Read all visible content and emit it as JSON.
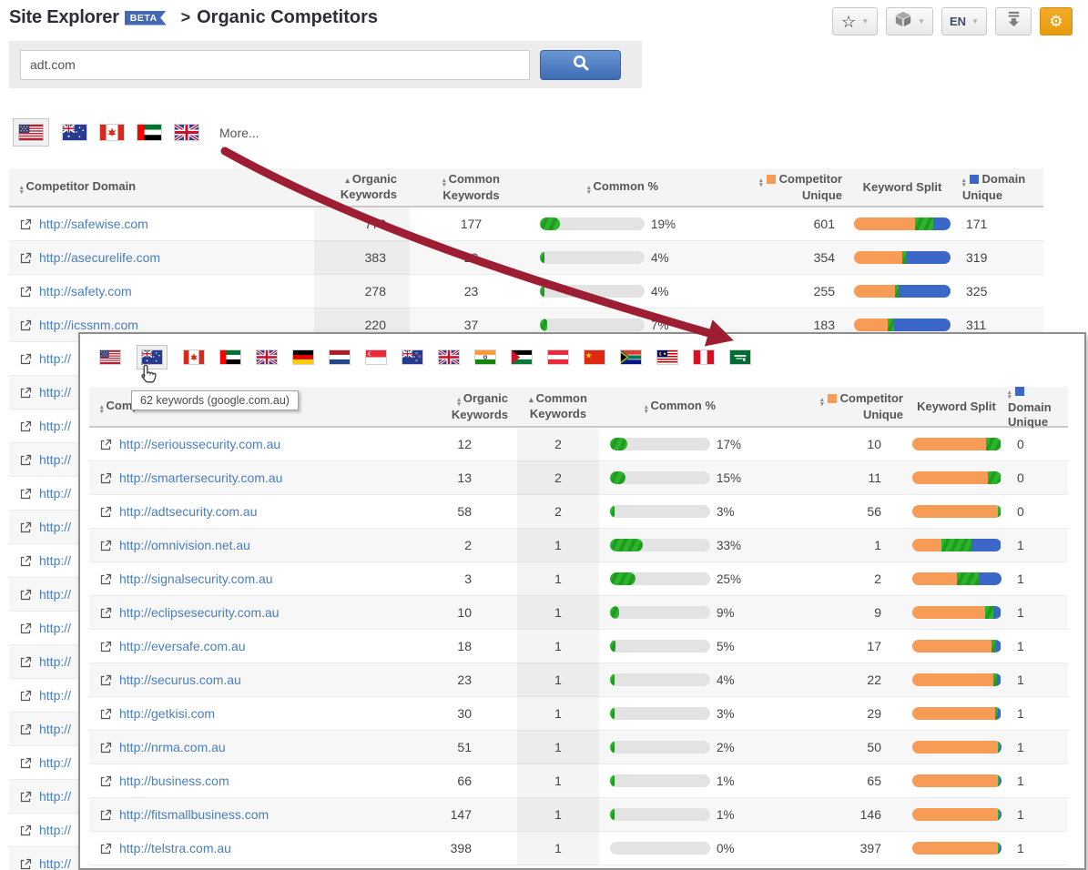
{
  "colors": {
    "accent_orange": "#f79c57",
    "accent_green": "#2cb52c",
    "accent_blue": "#3a67c8",
    "link_blue": "#4a7ebd",
    "arrow_red": "#9d1d33",
    "beta_blue": "#4568b2",
    "gear_orange": "#eda211"
  },
  "header": {
    "title": "Site Explorer",
    "beta_badge": "BETA",
    "breadcrumb_separator": ">",
    "breadcrumb": "Organic Competitors",
    "toolbar": {
      "language": "EN"
    }
  },
  "search": {
    "value": "adt.com"
  },
  "country_tabs": {
    "more_label": "More...",
    "flags": [
      {
        "code": "us",
        "name": "United States",
        "selected": true
      },
      {
        "code": "au",
        "name": "Australia",
        "selected": false
      },
      {
        "code": "ca",
        "name": "Canada",
        "selected": false
      },
      {
        "code": "ae",
        "name": "United Arab Emirates",
        "selected": false
      },
      {
        "code": "gb",
        "name": "United Kingdom",
        "selected": false
      }
    ]
  },
  "table": {
    "columns": [
      {
        "label": "Competitor Domain",
        "sort": "both"
      },
      {
        "label": "Organic Keywords",
        "sort": "asc",
        "shaded": true
      },
      {
        "label": "Common Keywords",
        "sort": "both"
      },
      {
        "label": "Common %",
        "sort": "both"
      },
      {
        "label": "Competitor Unique",
        "sort": "both",
        "swatch": "orange"
      },
      {
        "label": "Keyword Split",
        "sort": null
      },
      {
        "label": "Domain Unique",
        "sort": "both",
        "swatch": "blue"
      }
    ],
    "rows": [
      {
        "domain": "http://safewise.com",
        "organic": 778,
        "common": 177,
        "common_pct": 19,
        "competitor_unique": 601,
        "domain_unique": 171,
        "split": [
          63.3,
          18.7,
          18.0
        ]
      },
      {
        "domain": "http://asecurelife.com",
        "organic": 383,
        "common": 29,
        "common_pct": 4,
        "competitor_unique": 354,
        "domain_unique": 319,
        "split": [
          50.4,
          4.1,
          45.5
        ]
      },
      {
        "domain": "http://safety.com",
        "organic": 278,
        "common": 23,
        "common_pct": 4,
        "competitor_unique": 255,
        "domain_unique": 325,
        "split": [
          42.3,
          3.8,
          53.9
        ]
      },
      {
        "domain": "http://icssnm.com",
        "organic": 220,
        "common": 37,
        "common_pct": 7,
        "competitor_unique": 183,
        "domain_unique": 311,
        "split": [
          34.5,
          7.0,
          58.5
        ]
      }
    ],
    "partial_rows": {
      "count": 16,
      "visible_text": "http://"
    }
  },
  "popup": {
    "tooltip": "62 keywords (google.com.au)",
    "flags": [
      {
        "code": "us",
        "name": "United States",
        "selected": false
      },
      {
        "code": "au",
        "name": "Australia",
        "selected": true
      },
      {
        "code": "ca",
        "name": "Canada",
        "selected": false
      },
      {
        "code": "ae",
        "name": "United Arab Emirates",
        "selected": false
      },
      {
        "code": "gb",
        "name": "United Kingdom",
        "selected": false
      },
      {
        "code": "de",
        "name": "Germany",
        "selected": false
      },
      {
        "code": "nl",
        "name": "Netherlands",
        "selected": false
      },
      {
        "code": "sg",
        "name": "Singapore",
        "selected": false
      },
      {
        "code": "nz",
        "name": "New Zealand",
        "selected": false
      },
      {
        "code": "gb",
        "name": "United Kingdom",
        "selected": false
      },
      {
        "code": "in",
        "name": "India",
        "selected": false
      },
      {
        "code": "jo",
        "name": "Jordan",
        "selected": false
      },
      {
        "code": "at",
        "name": "Austria",
        "selected": false
      },
      {
        "code": "cn",
        "name": "China",
        "selected": false
      },
      {
        "code": "za",
        "name": "South Africa",
        "selected": false
      },
      {
        "code": "my",
        "name": "Malaysia",
        "selected": false
      },
      {
        "code": "pe",
        "name": "Peru",
        "selected": false
      },
      {
        "code": "sa",
        "name": "Saudi Arabia",
        "selected": false
      }
    ],
    "columns": [
      {
        "label": "Competitor Domain",
        "sort": "both"
      },
      {
        "label": "Organic Keywords",
        "sort": "both"
      },
      {
        "label": "Common Keywords",
        "sort": "asc",
        "shaded": true
      },
      {
        "label": "Common %",
        "sort": "both"
      },
      {
        "label": "Competitor Unique",
        "sort": "both",
        "swatch": "orange"
      },
      {
        "label": "Keyword Split",
        "sort": null
      },
      {
        "label": "Domain Unique",
        "sort": "both",
        "swatch": "blue"
      }
    ],
    "rows": [
      {
        "domain": "http://serioussecurity.com.au",
        "organic": 12,
        "common": 2,
        "common_pct": 17,
        "competitor_unique": 10,
        "domain_unique": 0,
        "split": [
          83.0,
          17.0,
          0
        ]
      },
      {
        "domain": "http://smartersecurity.com.au",
        "organic": 13,
        "common": 2,
        "common_pct": 15,
        "competitor_unique": 11,
        "domain_unique": 0,
        "split": [
          85.0,
          15.0,
          0
        ]
      },
      {
        "domain": "http://adtsecurity.com.au",
        "organic": 58,
        "common": 2,
        "common_pct": 3,
        "competitor_unique": 56,
        "domain_unique": 0,
        "split": [
          96.5,
          3.5,
          0
        ]
      },
      {
        "domain": "http://omnivision.net.au",
        "organic": 2,
        "common": 1,
        "common_pct": 33,
        "competitor_unique": 1,
        "domain_unique": 1,
        "split": [
          33.4,
          33.3,
          33.3
        ]
      },
      {
        "domain": "http://signalsecurity.com.au",
        "organic": 3,
        "common": 1,
        "common_pct": 25,
        "competitor_unique": 2,
        "domain_unique": 1,
        "split": [
          50.0,
          25.0,
          25.0
        ]
      },
      {
        "domain": "http://eclipsesecurity.com.au",
        "organic": 10,
        "common": 1,
        "common_pct": 9,
        "competitor_unique": 9,
        "domain_unique": 1,
        "split": [
          82.0,
          9.0,
          9.0
        ]
      },
      {
        "domain": "http://eversafe.com.au",
        "organic": 18,
        "common": 1,
        "common_pct": 5,
        "competitor_unique": 17,
        "domain_unique": 1,
        "split": [
          89.4,
          5.3,
          5.3
        ]
      },
      {
        "domain": "http://securus.com.au",
        "organic": 23,
        "common": 1,
        "common_pct": 4,
        "competitor_unique": 22,
        "domain_unique": 1,
        "split": [
          91.6,
          4.2,
          4.2
        ]
      },
      {
        "domain": "http://getkisi.com",
        "organic": 30,
        "common": 1,
        "common_pct": 3,
        "competitor_unique": 29,
        "domain_unique": 1,
        "split": [
          93.6,
          3.2,
          3.2
        ]
      },
      {
        "domain": "http://nrma.com.au",
        "organic": 51,
        "common": 1,
        "common_pct": 2,
        "competitor_unique": 50,
        "domain_unique": 1,
        "split": [
          96.2,
          1.9,
          1.9
        ]
      },
      {
        "domain": "http://business.com",
        "organic": 66,
        "common": 1,
        "common_pct": 1,
        "competitor_unique": 65,
        "domain_unique": 1,
        "split": [
          97.0,
          1.5,
          1.5
        ]
      },
      {
        "domain": "http://fitsmallbusiness.com",
        "organic": 147,
        "common": 1,
        "common_pct": 1,
        "competitor_unique": 146,
        "domain_unique": 1,
        "split": [
          98.6,
          0.7,
          0.7
        ]
      },
      {
        "domain": "http://telstra.com.au",
        "organic": 398,
        "common": 1,
        "common_pct": 0,
        "competitor_unique": 397,
        "domain_unique": 1,
        "split": [
          99.5,
          0.25,
          0.25
        ]
      }
    ]
  }
}
